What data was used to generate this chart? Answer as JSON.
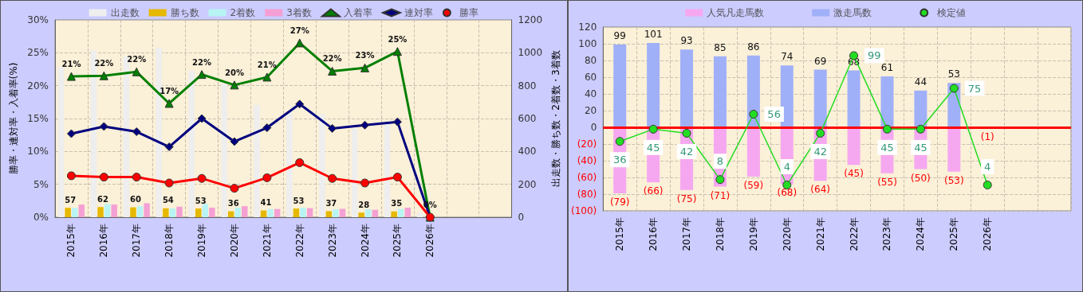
{
  "chart_data": [
    {
      "type": "bar",
      "categories": [
        "2015年",
        "2016年",
        "2017年",
        "2018年",
        "2019年",
        "2020年",
        "2021年",
        "2022年",
        "2023年",
        "2024年",
        "2025年",
        "2026年",
        null,
        null
      ],
      "ylabel": "勝率・連対率・入着率(%)",
      "y2label": "出走数・勝ち数・2着数・3着数",
      "ylim": [
        0,
        30
      ],
      "yticks": [
        {
          "value": 0,
          "label": "0%"
        },
        {
          "value": 5,
          "label": "5%"
        },
        {
          "value": 10,
          "label": "10%"
        },
        {
          "value": 15,
          "label": "15%"
        },
        {
          "value": 20,
          "label": "20%"
        },
        {
          "value": 25,
          "label": "25%"
        },
        {
          "value": 30,
          "label": "30%"
        }
      ],
      "y2lim": [
        0,
        1200
      ],
      "y2ticks": [
        0,
        200,
        400,
        600,
        800,
        1000,
        1200
      ],
      "grid": true,
      "legend": "top",
      "series": [
        {
          "name": "出走数",
          "axis": "y2",
          "color": "#eeeeee",
          "values": [
            911,
            1015,
            978,
            1031,
            890,
            812,
            682,
            642,
            626,
            539,
            573,
            27,
            null,
            null
          ]
        },
        {
          "name": "勝ち数",
          "axis": "y2",
          "color": "#e6b800",
          "values": [
            57,
            62,
            60,
            54,
            53,
            36,
            41,
            53,
            37,
            28,
            35,
            0,
            null,
            null
          ],
          "value_labels": [
            "57",
            "62",
            "60",
            "54",
            "53",
            "36",
            "41",
            "53",
            "37",
            "28",
            "35",
            null,
            null,
            null
          ]
        },
        {
          "name": "2着数",
          "axis": "y2",
          "color": "#b8f4f4",
          "values": [
            56,
            80,
            67,
            53,
            80,
            58,
            50,
            58,
            48,
            48,
            50,
            0,
            null,
            null
          ]
        },
        {
          "name": "3着数",
          "axis": "y2",
          "color": "#f4a0d4",
          "values": [
            77,
            77,
            85,
            64,
            58,
            67,
            50,
            55,
            51,
            45,
            58,
            0,
            null,
            null
          ]
        },
        {
          "name": "入着率",
          "type": "line",
          "marker": "triangle",
          "color": "#008000",
          "values": [
            21.4,
            21.5,
            22.1,
            17.3,
            21.7,
            20.1,
            21.3,
            26.5,
            22.2,
            22.7,
            25.2,
            0,
            null,
            null
          ],
          "value_labels": [
            "21%",
            "22%",
            "22%",
            "17%",
            "22%",
            "20%",
            "21%",
            "27%",
            "22%",
            "23%",
            "25%",
            "0%",
            null,
            null
          ]
        },
        {
          "name": "連対率",
          "type": "line",
          "marker": "diamond",
          "color": "#000080",
          "values": [
            12.7,
            13.8,
            13.0,
            10.7,
            15.0,
            11.5,
            13.6,
            17.2,
            13.5,
            14.0,
            14.5,
            0,
            null,
            null
          ]
        },
        {
          "name": "勝率",
          "type": "line",
          "marker": "circle",
          "color": "#ff0000",
          "values": [
            6.3,
            6.1,
            6.1,
            5.2,
            5.9,
            4.4,
            6.0,
            8.3,
            5.9,
            5.2,
            6.1,
            0,
            null,
            null
          ]
        }
      ]
    },
    {
      "type": "bar",
      "categories": [
        "2015年",
        "2016年",
        "2017年",
        "2018年",
        "2019年",
        "2020年",
        "2021年",
        "2022年",
        "2023年",
        "2024年",
        "2025年",
        "2026年",
        null,
        null
      ],
      "ylim": [
        -100,
        120
      ],
      "yticks": [
        {
          "value": -100,
          "label": "(100)"
        },
        {
          "value": -80,
          "label": "(80)"
        },
        {
          "value": -60,
          "label": "(60)"
        },
        {
          "value": -40,
          "label": "(40)"
        },
        {
          "value": -20,
          "label": "(20)"
        },
        0,
        20,
        40,
        60,
        80,
        100,
        120
      ],
      "y2lim": [
        -15,
        120
      ],
      "stacked": true,
      "grid": true,
      "legend": "top",
      "ref_lines": [
        {
          "axis": "y",
          "value": 0,
          "color": "#ff0000"
        }
      ],
      "series": [
        {
          "name": "人気凡走馬数",
          "color": "#f5a8f0",
          "values": [
            -79,
            -66,
            -75,
            -71,
            -59,
            -68,
            -64,
            -45,
            -55,
            -50,
            -53,
            -1,
            null,
            null
          ],
          "value_labels": [
            "(79)",
            "(66)",
            "(75)",
            "(71)",
            "(59)",
            "(68)",
            "(64)",
            "(45)",
            "(55)",
            "(50)",
            "(53)",
            "(1)",
            null,
            null
          ]
        },
        {
          "name": "激走馬数",
          "color": "#a0b0f8",
          "values": [
            99,
            101,
            93,
            85,
            86,
            74,
            69,
            68,
            61,
            44,
            53,
            0,
            null,
            null
          ],
          "value_labels": [
            "99",
            "101",
            "93",
            "85",
            "86",
            "74",
            "69",
            "68",
            "61",
            "44",
            "53",
            null,
            null,
            null
          ]
        },
        {
          "name": "検定値",
          "type": "line",
          "axis": "y2",
          "marker": "circle",
          "color": "#22dd22",
          "values": [
            36,
            45,
            42,
            8,
            56,
            4,
            42,
            99,
            45,
            45,
            75,
            4,
            null,
            null
          ],
          "value_labels": [
            "36",
            "45",
            "42",
            "8",
            "56",
            "4",
            "42",
            "99",
            "45",
            "45",
            "75",
            "4",
            null,
            null
          ]
        }
      ]
    }
  ]
}
